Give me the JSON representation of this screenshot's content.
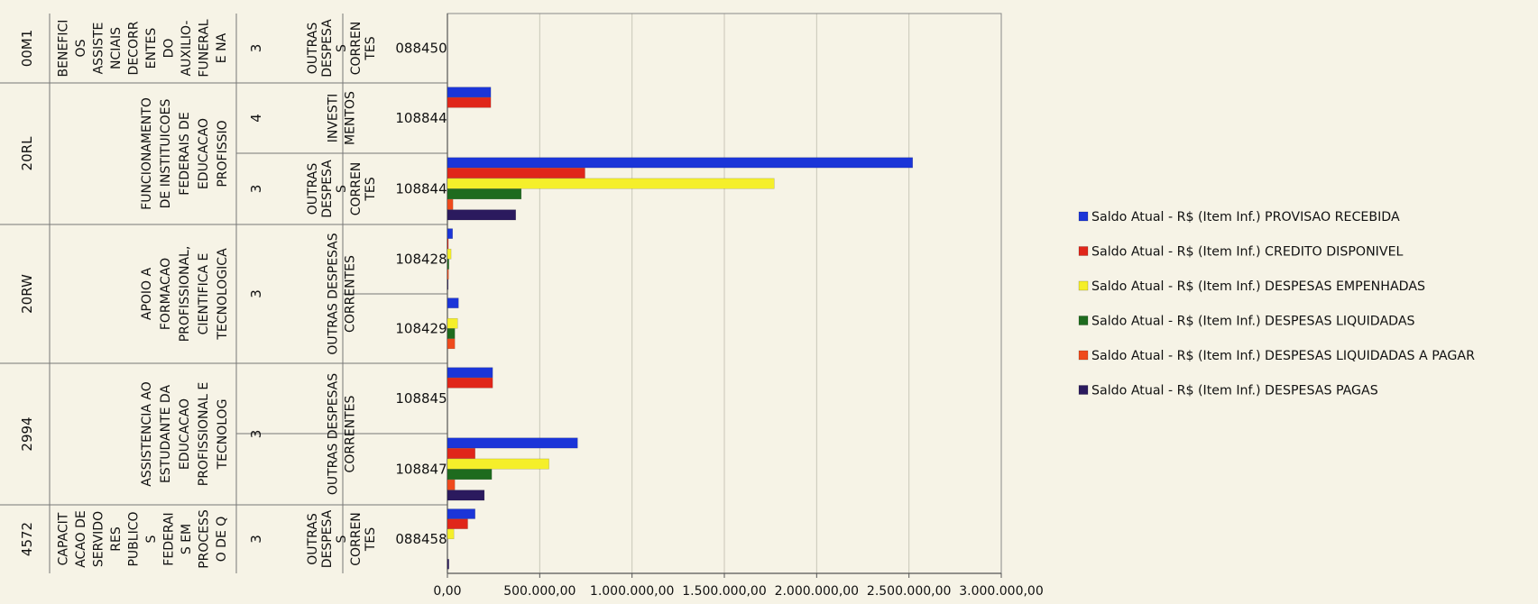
{
  "chart_data": {
    "type": "bar",
    "orientation": "horizontal",
    "title": "",
    "xlim": [
      0,
      3000000
    ],
    "x_ticks": [
      0,
      500000,
      1000000,
      1500000,
      2000000,
      2500000,
      3000000
    ],
    "x_tick_labels": [
      "0,00",
      "500.000,00",
      "1.000.000,00",
      "1.500.000,00",
      "2.000.000,00",
      "2.500.000,00",
      "3.000.000,00"
    ],
    "grid": true,
    "legend_position": "right",
    "series": [
      {
        "name": "Saldo Atual - R$ (Item Inf.) PROVISAO RECEBIDA",
        "color": "#1b35d8"
      },
      {
        "name": "Saldo Atual - R$ (Item Inf.) CREDITO DISPONIVEL",
        "color": "#e0261a"
      },
      {
        "name": "Saldo Atual - R$ (Item Inf.) DESPESAS EMPENHADAS",
        "color": "#f5ef2a"
      },
      {
        "name": "Saldo Atual - R$ (Item Inf.) DESPESAS LIQUIDADAS",
        "color": "#1e6b1e"
      },
      {
        "name": "Saldo Atual - R$ (Item Inf.) DESPESAS LIQUIDADAS A PAGAR",
        "color": "#ef4a1c"
      },
      {
        "name": "Saldo Atual - R$ (Item Inf.) DESPESAS PAGAS",
        "color": "#2b1a5e"
      }
    ],
    "categories": [
      {
        "acao": "00M1",
        "descricao": "BENEFICIOS ASSISTENCIAIS DECORRENTES DO AUXILIO-FUNERAL E NA",
        "gnd": "3",
        "grupo": "OUTRAS DESPESAS CORRENTES",
        "ug": "088450",
        "values": [
          0,
          0,
          0,
          0,
          0,
          0
        ]
      },
      {
        "acao": "20RL",
        "descricao": "FUNCIONAMENTO DE INSTITUICOES FEDERAIS DE EDUCACAO PROFISSIO",
        "gnd": "4",
        "grupo": "INVESTIMENTOS",
        "ug": "108844",
        "values": [
          235000,
          235000,
          0,
          0,
          0,
          0
        ]
      },
      {
        "acao": "20RL",
        "descricao": "FUNCIONAMENTO DE INSTITUICOES FEDERAIS DE EDUCACAO PROFISSIO",
        "gnd": "3",
        "grupo": "OUTRAS DESPESAS CORRENTES",
        "ug": "108844",
        "values": [
          2520000,
          745000,
          1770000,
          400000,
          30000,
          370000
        ]
      },
      {
        "acao": "20RW",
        "descricao": "APOIO A FORMACAO PROFISSIONAL, CIENTIFICA E TECNOLOGICA",
        "gnd": "3",
        "grupo": "OUTRAS DESPESAS CORRENTES",
        "ug": "108428",
        "values": [
          28000,
          5000,
          20000,
          8000,
          6000,
          4000
        ]
      },
      {
        "acao": "20RW",
        "descricao": "APOIO A FORMACAO PROFISSIONAL, CIENTIFICA E TECNOLOGICA",
        "gnd": "3",
        "grupo": "OUTRAS DESPESAS CORRENTES",
        "ug": "108429",
        "values": [
          60000,
          0,
          55000,
          40000,
          40000,
          0
        ]
      },
      {
        "acao": "2994",
        "descricao": "ASSISTENCIA AO ESTUDANTE DA EDUCACAO PROFISSIONAL E TECNOLOG",
        "gnd": "3",
        "grupo": "OUTRAS DESPESAS CORRENTES",
        "ug": "108845",
        "values": [
          245000,
          245000,
          0,
          0,
          0,
          0
        ]
      },
      {
        "acao": "2994",
        "descricao": "ASSISTENCIA AO ESTUDANTE DA EDUCACAO PROFISSIONAL E TECNOLOG",
        "gnd": "3",
        "grupo": "OUTRAS DESPESAS CORRENTES",
        "ug": "108847",
        "values": [
          705000,
          150000,
          550000,
          240000,
          40000,
          200000
        ]
      },
      {
        "acao": "4572",
        "descricao": "CAPACITACAO DE SERVIDORES PUBLICOS FEDERAIS EM PROCESSO DE Q",
        "gnd": "3",
        "grupo": "OUTRAS DESPESAS CORRENTES",
        "ug": "088458",
        "values": [
          150000,
          110000,
          35000,
          0,
          0,
          8000
        ]
      }
    ]
  },
  "labels": {
    "acao": [
      {
        "text": "00M1"
      },
      {
        "text": "20RL"
      },
      {
        "text": "20RW"
      },
      {
        "text": "2994"
      },
      {
        "text": "4572"
      }
    ],
    "descricao": [
      {
        "lines": [
          "BENEFICI",
          "OS",
          "ASSISTE",
          "NCIAIS",
          "DECORR",
          "ENTES",
          "DO",
          "AUXILIO-",
          "FUNERAL",
          "E NA"
        ]
      },
      {
        "lines": [
          "FUNCIONAMENTO",
          "DE INSTITUICOES",
          "FEDERAIS DE",
          "EDUCACAO",
          "PROFISSIO"
        ]
      },
      {
        "lines": [
          "APOIO A",
          "FORMACAO",
          "PROFISSIONAL,",
          "CIENTIFICA E",
          "TECNOLOGICA"
        ]
      },
      {
        "lines": [
          "ASSISTENCIA AO",
          "ESTUDANTE DA",
          "EDUCACAO",
          "PROFISSIONAL E",
          "TECNOLOG"
        ]
      },
      {
        "lines": [
          "CAPACIT",
          "ACAO DE",
          "SERVIDO",
          "RES",
          "PUBLICO",
          "S",
          "FEDERAI",
          "S EM",
          "PROCESS",
          "O DE Q"
        ]
      }
    ],
    "gnd": [
      {
        "text": "3"
      },
      {
        "text": "4"
      },
      {
        "text": "3"
      },
      {
        "text": "3"
      },
      {
        "text": "3"
      },
      {
        "text": "3"
      }
    ],
    "grupo": [
      {
        "lines": [
          "OUTRAS",
          "DESPESA",
          "S",
          "CORREN",
          "TES"
        ]
      },
      {
        "lines": [
          "INVESTI",
          "MENTOS"
        ]
      },
      {
        "lines": [
          "OUTRAS",
          "DESPESA",
          "S",
          "CORREN",
          "TES"
        ]
      },
      {
        "lines": [
          "OUTRAS DESPESAS",
          "CORRENTES"
        ]
      },
      {
        "lines": [
          "OUTRAS DESPESAS",
          "CORRENTES"
        ]
      },
      {
        "lines": [
          "OUTRAS",
          "DESPESA",
          "S",
          "CORREN",
          "TES"
        ]
      }
    ],
    "ug": [
      {
        "text": "088450"
      },
      {
        "text": "108844"
      },
      {
        "text": "108844"
      },
      {
        "text": "108428"
      },
      {
        "text": "108429"
      },
      {
        "text": "108845"
      },
      {
        "text": "108847"
      },
      {
        "text": "088458"
      }
    ]
  }
}
